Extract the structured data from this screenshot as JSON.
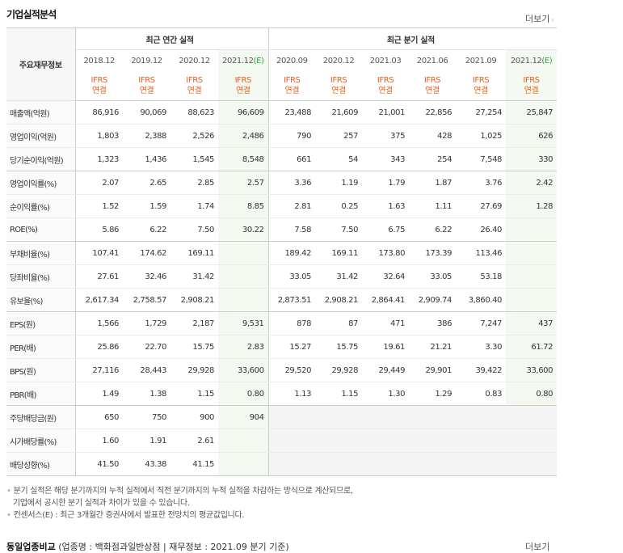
{
  "section": {
    "title": "기업실적분석",
    "more_label": "더보기"
  },
  "headers": {
    "corner": "주요재무정보",
    "annual_group": "최근 연간 실적",
    "quarter_group": "최근 분기 실적",
    "periods": [
      "2018.12",
      "2019.12",
      "2020.12",
      "2021.12",
      "2020.09",
      "2020.12",
      "2021.03",
      "2021.06",
      "2021.09",
      "2021.12"
    ],
    "est_mark": "(E)",
    "ifrs_top": "IFRS",
    "ifrs_bottom": "연결"
  },
  "rows": [
    {
      "label": "매출액(억원)",
      "values": [
        "86,916",
        "90,069",
        "88,623",
        "96,609",
        "23,488",
        "21,609",
        "21,001",
        "22,856",
        "27,254",
        "25,847"
      ]
    },
    {
      "label": "영업이익(억원)",
      "values": [
        "1,803",
        "2,388",
        "2,526",
        "2,486",
        "790",
        "257",
        "375",
        "428",
        "1,025",
        "626"
      ]
    },
    {
      "label": "당기순이익(억원)",
      "values": [
        "1,323",
        "1,436",
        "1,545",
        "8,548",
        "661",
        "54",
        "343",
        "254",
        "7,548",
        "330"
      ]
    },
    {
      "label": "영업이익률(%)",
      "values": [
        "2.07",
        "2.65",
        "2.85",
        "2.57",
        "3.36",
        "1.19",
        "1.79",
        "1.87",
        "3.76",
        "2.42"
      ]
    },
    {
      "label": "순이익률(%)",
      "values": [
        "1.52",
        "1.59",
        "1.74",
        "8.85",
        "2.81",
        "0.25",
        "1.63",
        "1.11",
        "27.69",
        "1.28"
      ]
    },
    {
      "label": "ROE(%)",
      "values": [
        "5.86",
        "6.22",
        "7.50",
        "30.22",
        "7.58",
        "7.50",
        "6.75",
        "6.22",
        "26.40",
        ""
      ]
    },
    {
      "label": "부채비율(%)",
      "values": [
        "107.41",
        "174.62",
        "169.11",
        "",
        "189.42",
        "169.11",
        "173.80",
        "173.39",
        "113.46",
        ""
      ]
    },
    {
      "label": "당좌비율(%)",
      "values": [
        "27.61",
        "32.46",
        "31.42",
        "",
        "33.05",
        "31.42",
        "32.64",
        "33.05",
        "53.18",
        ""
      ]
    },
    {
      "label": "유보율(%)",
      "values": [
        "2,617.34",
        "2,758.57",
        "2,908.21",
        "",
        "2,873.51",
        "2,908.21",
        "2,864.41",
        "2,909.74",
        "3,860.40",
        ""
      ]
    },
    {
      "label": "EPS(원)",
      "values": [
        "1,566",
        "1,729",
        "2,187",
        "9,531",
        "878",
        "87",
        "471",
        "386",
        "7,247",
        "437"
      ]
    },
    {
      "label": "PER(배)",
      "values": [
        "25.86",
        "22.70",
        "15.75",
        "2.83",
        "15.27",
        "15.75",
        "19.61",
        "21.21",
        "3.30",
        "61.72"
      ]
    },
    {
      "label": "BPS(원)",
      "values": [
        "27,116",
        "28,443",
        "29,928",
        "33,600",
        "29,520",
        "29,928",
        "29,449",
        "29,901",
        "39,422",
        "33,600"
      ]
    },
    {
      "label": "PBR(배)",
      "values": [
        "1.49",
        "1.38",
        "1.15",
        "0.80",
        "1.13",
        "1.15",
        "1.30",
        "1.29",
        "0.83",
        "0.80"
      ]
    },
    {
      "label": "주당배당금(원)",
      "values": [
        "650",
        "750",
        "900",
        "904",
        "",
        "",
        "",
        "",
        "",
        ""
      ]
    },
    {
      "label": "시가배당률(%)",
      "values": [
        "1.60",
        "1.91",
        "2.61",
        "",
        "",
        "",
        "",
        "",
        "",
        ""
      ]
    },
    {
      "label": "배당성향(%)",
      "values": [
        "41.50",
        "43.38",
        "41.15",
        "",
        "",
        "",
        "",
        "",
        "",
        ""
      ]
    }
  ],
  "notes": {
    "line1": "분기 실적은 해당 분기까지의 누적 실적에서 직전 분기까지의 누적 실적을 차감하는 방식으로 계산되므로,",
    "line2": "기업에서 공시한 분기 실적과 차이가 있을 수 있습니다.",
    "line3": "컨센서스(E) : 최근 3개월간 증권사에서 발표한 전망치의 평균값입니다."
  },
  "next_section": {
    "title": "동일업종비교",
    "subtitle": "(업종명 : 백화점과일반상점 | 재무정보 : 2021.09 분기 기준)",
    "more_label": "더보기"
  },
  "colors": {
    "ifrs": "#e8601c",
    "estimate": "#38a23a",
    "estimate_bg": "#f3f8f0"
  }
}
